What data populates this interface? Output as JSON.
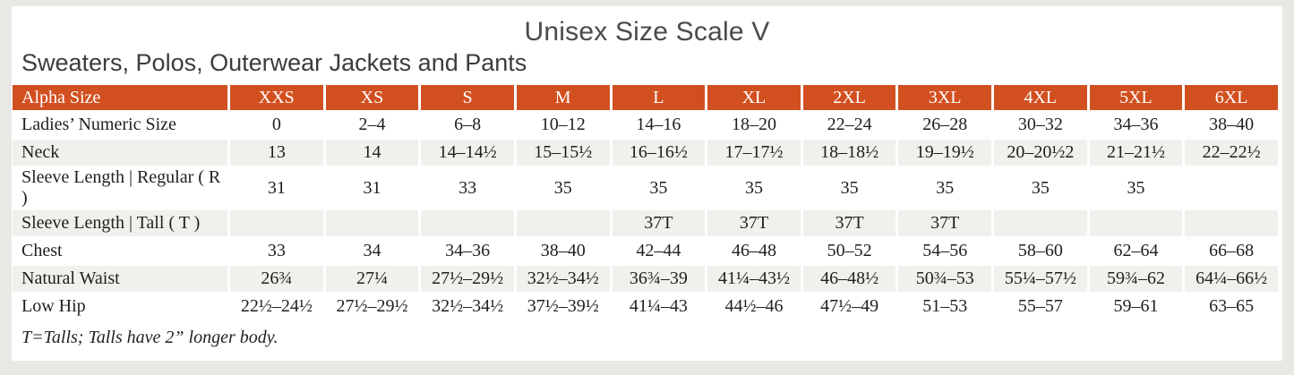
{
  "page": {
    "title": "Unisex Size Scale V",
    "subtitle": "Sweaters, Polos, Outerwear Jackets and Pants",
    "footnote": "T=Talls; Talls have 2” longer body."
  },
  "colors": {
    "header_bg": "#d25020",
    "header_text": "#ffffff",
    "shaded_row_bg": "#f2f0ec",
    "page_bg": "#e9e8e5",
    "body_text": "#1f1f1f"
  },
  "chart_data": {
    "type": "table",
    "title": "Unisex Size Scale V",
    "subtitle": "Sweaters, Polos, Outerwear Jackets and Pants",
    "header": [
      "Alpha Size",
      "XXS",
      "XS",
      "S",
      "M",
      "L",
      "XL",
      "2XL",
      "3XL",
      "4XL",
      "5XL",
      "6XL"
    ],
    "rows": [
      {
        "label": "Ladies’ Numeric Size",
        "shaded": false,
        "values": [
          "0",
          "2–4",
          "6–8",
          "10–12",
          "14–16",
          "18–20",
          "22–24",
          "26–28",
          "30–32",
          "34–36",
          "38–40"
        ]
      },
      {
        "label": "Neck",
        "shaded": true,
        "values": [
          "13",
          "14",
          "14–14½",
          "15–15½",
          "16–16½",
          "17–17½",
          "18–18½",
          "19–19½",
          "20–20½2",
          "21–21½",
          "22–22½"
        ]
      },
      {
        "label": "Sleeve Length | Regular ( R )",
        "shaded": false,
        "values": [
          "31",
          "31",
          "33",
          "35",
          "35",
          "35",
          "35",
          "35",
          "35",
          "35",
          ""
        ]
      },
      {
        "label": "Sleeve Length | Tall ( T )",
        "shaded": true,
        "values": [
          "",
          "",
          "",
          "",
          "37T",
          "37T",
          "37T",
          "37T",
          "",
          "",
          ""
        ]
      },
      {
        "label": "Chest",
        "shaded": false,
        "values": [
          "33",
          "34",
          "34–36",
          "38–40",
          "42–44",
          "46–48",
          "50–52",
          "54–56",
          "58–60",
          "62–64",
          "66–68"
        ]
      },
      {
        "label": "Natural Waist",
        "shaded": true,
        "values": [
          "26¾",
          "27¼",
          "27½–29½",
          "32½–34½",
          "36¾–39",
          "41¼–43½",
          "46–48½",
          "50¾–53",
          "55¼–57½",
          "59¾–62",
          "64¼–66½"
        ]
      },
      {
        "label": "Low Hip",
        "shaded": false,
        "values": [
          "22½–24½",
          "27½–29½",
          "32½–34½",
          "37½–39½",
          "41¼–43",
          "44½–46",
          "47½–49",
          "51–53",
          "55–57",
          "59–61",
          "63–65"
        ]
      }
    ]
  }
}
